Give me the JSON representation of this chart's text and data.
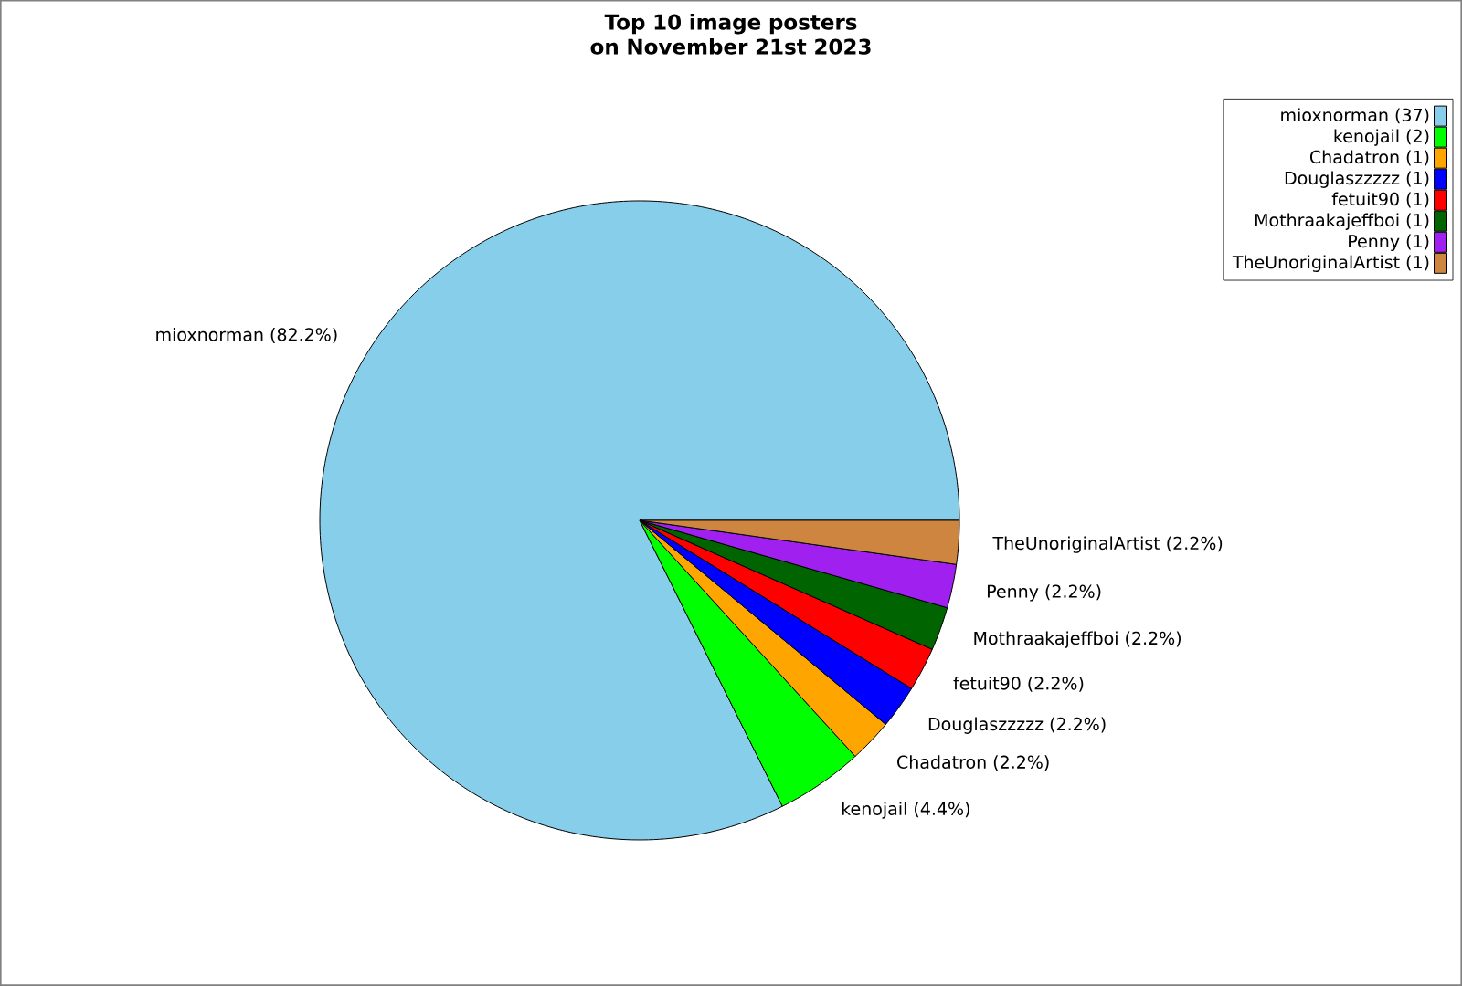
{
  "chart_data": {
    "type": "pie",
    "title": "Top 10 image posters on November 21st 2023",
    "categories": [
      "mioxnorman (37)",
      "kenojail (2)",
      "Chadatron (1)",
      "Douglaszzzzz (1)",
      "fetuit90 (1)",
      "Mothraakajeffboi (1)",
      "Penny (1)",
      "TheUnoriginalArtist (1)"
    ],
    "values": [
      82.2,
      4.4,
      2.2,
      2.2,
      2.2,
      2.2,
      2.2,
      2.2
    ],
    "colors": [
      "#87ceeb",
      "#00ff00",
      "#ffa500",
      "#0000ff",
      "#ff0000",
      "#006400",
      "#a020f0",
      "#cd853f"
    ],
    "value_labels": [
      "mioxnorman (82.2%)",
      "kenojail (4.4%)",
      "Chadatron (2.2%)",
      "Douglaszzzzz (2.2%)",
      "fetuit90 (2.2%)",
      "Mothraakajeffboi (2.2%)",
      "Penny (2.2%)",
      "TheUnoriginalArtist (2.2%)"
    ],
    "legend": "top right"
  }
}
